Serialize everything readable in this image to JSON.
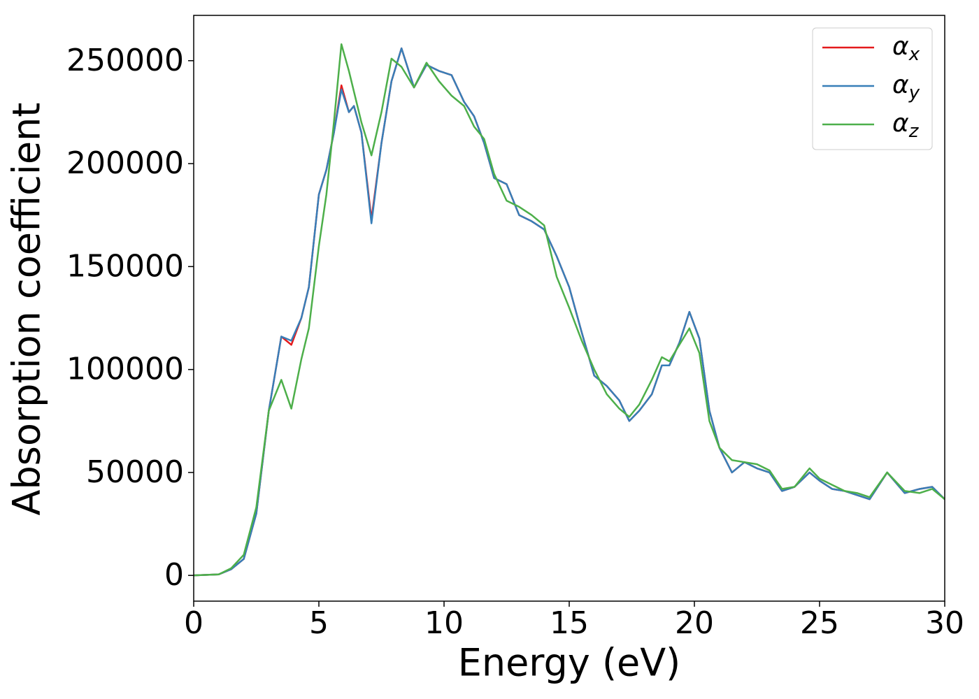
{
  "chart_data": {
    "type": "line",
    "x_label": "Energy (eV)",
    "y_label": "Absorption coefficient",
    "x": [
      0,
      1,
      1.5,
      2,
      2.5,
      3,
      3.5,
      3.9,
      4.3,
      4.6,
      5,
      5.3,
      5.6,
      5.9,
      6.2,
      6.4,
      6.7,
      7.1,
      7.5,
      7.9,
      8.3,
      8.8,
      9.3,
      9.8,
      10.3,
      10.8,
      11.2,
      11.6,
      12,
      12.5,
      13,
      13.5,
      14,
      14.5,
      15,
      15.5,
      16,
      16.5,
      17,
      17.4,
      17.8,
      18.3,
      18.7,
      19,
      19.4,
      19.8,
      20.2,
      20.6,
      21,
      21.5,
      22,
      22.5,
      23,
      23.5,
      24,
      24.6,
      25,
      25.5,
      26,
      26.5,
      27,
      27.7,
      28.4,
      29,
      29.5,
      30
    ],
    "series": [
      {
        "name": "αx",
        "color": "#e41a1c",
        "values": [
          0,
          500,
          3000,
          8000,
          30000,
          80000,
          116000,
          112000,
          125000,
          140000,
          185000,
          197000,
          215000,
          238000,
          225000,
          228000,
          215000,
          173000,
          210000,
          240000,
          256000,
          237000,
          248000,
          245000,
          243000,
          230000,
          223000,
          210000,
          193000,
          190000,
          175000,
          172000,
          168000,
          155000,
          140000,
          118000,
          97000,
          92000,
          85000,
          75000,
          80000,
          88000,
          102000,
          102000,
          113000,
          128000,
          115000,
          80000,
          62000,
          50000,
          55000,
          52000,
          50000,
          41000,
          43000,
          50000,
          46000,
          42000,
          41000,
          39000,
          37000,
          50000,
          40000,
          42000,
          43000,
          37000
        ]
      },
      {
        "name": "αy",
        "color": "#377eb8",
        "values": [
          0,
          500,
          3000,
          8000,
          30000,
          80000,
          116000,
          114000,
          125000,
          140000,
          185000,
          197000,
          215000,
          236000,
          225000,
          228000,
          215000,
          171000,
          210000,
          240000,
          256000,
          237000,
          248000,
          245000,
          243000,
          230000,
          223000,
          210000,
          193000,
          190000,
          175000,
          172000,
          168000,
          155000,
          140000,
          118000,
          97000,
          92000,
          85000,
          75000,
          80000,
          88000,
          102000,
          102000,
          113000,
          128000,
          115000,
          80000,
          62000,
          50000,
          55000,
          52000,
          50000,
          41000,
          43000,
          50000,
          46000,
          42000,
          41000,
          39000,
          37000,
          50000,
          40000,
          42000,
          43000,
          37000
        ]
      },
      {
        "name": "αz",
        "color": "#4daf4a",
        "values": [
          0,
          500,
          3500,
          10000,
          33000,
          80000,
          95000,
          81000,
          105000,
          120000,
          160000,
          185000,
          220000,
          258000,
          245000,
          235000,
          220000,
          204000,
          225000,
          251000,
          247000,
          237000,
          249000,
          240000,
          233000,
          228000,
          218000,
          212000,
          195000,
          182000,
          179000,
          175000,
          170000,
          145000,
          130000,
          114000,
          100000,
          88000,
          81000,
          77000,
          83000,
          95000,
          106000,
          104000,
          112000,
          120000,
          108000,
          75000,
          62000,
          56000,
          55000,
          54000,
          51000,
          42000,
          43000,
          52000,
          47000,
          44000,
          41000,
          40000,
          38000,
          50000,
          41000,
          40000,
          42000,
          37000
        ]
      }
    ],
    "xlim": [
      0,
      30
    ],
    "xticks": [
      0,
      5,
      10,
      15,
      20,
      25,
      30
    ],
    "ylim": [
      -12500,
      272000
    ],
    "yticks": [
      0,
      50000,
      100000,
      150000,
      200000,
      250000
    ],
    "legend": "upper right",
    "grid": false
  }
}
